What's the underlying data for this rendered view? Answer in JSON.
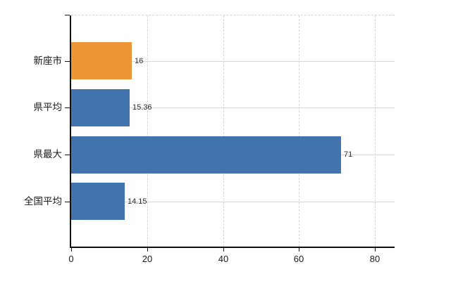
{
  "chart_data": {
    "type": "bar",
    "orientation": "horizontal",
    "title": "",
    "xlabel": "",
    "ylabel": "",
    "categories": [
      "新座市",
      "県平均",
      "県最大",
      "全国平均"
    ],
    "values": [
      16,
      15.36,
      71,
      14.15
    ],
    "value_labels": [
      "16",
      "15.36",
      "71",
      "14.15"
    ],
    "bar_colors": [
      "#EC9637",
      "#4173AE",
      "#4173AE",
      "#4173AE"
    ],
    "x_ticks": [
      0,
      20,
      40,
      60,
      80
    ],
    "xlim": [
      0,
      85
    ],
    "grid": true,
    "gridline_style": "vertical-dashed-horizontal-solid",
    "legend_position": "none"
  },
  "colors": {
    "highlight_bar": "#EC9637",
    "default_bar": "#4173AE",
    "gridline": "#D6D6D6",
    "axis": "#111111",
    "label_text": "#1A1A1A",
    "value_text": "#2B2B2B",
    "background": "#FFFFFF"
  }
}
